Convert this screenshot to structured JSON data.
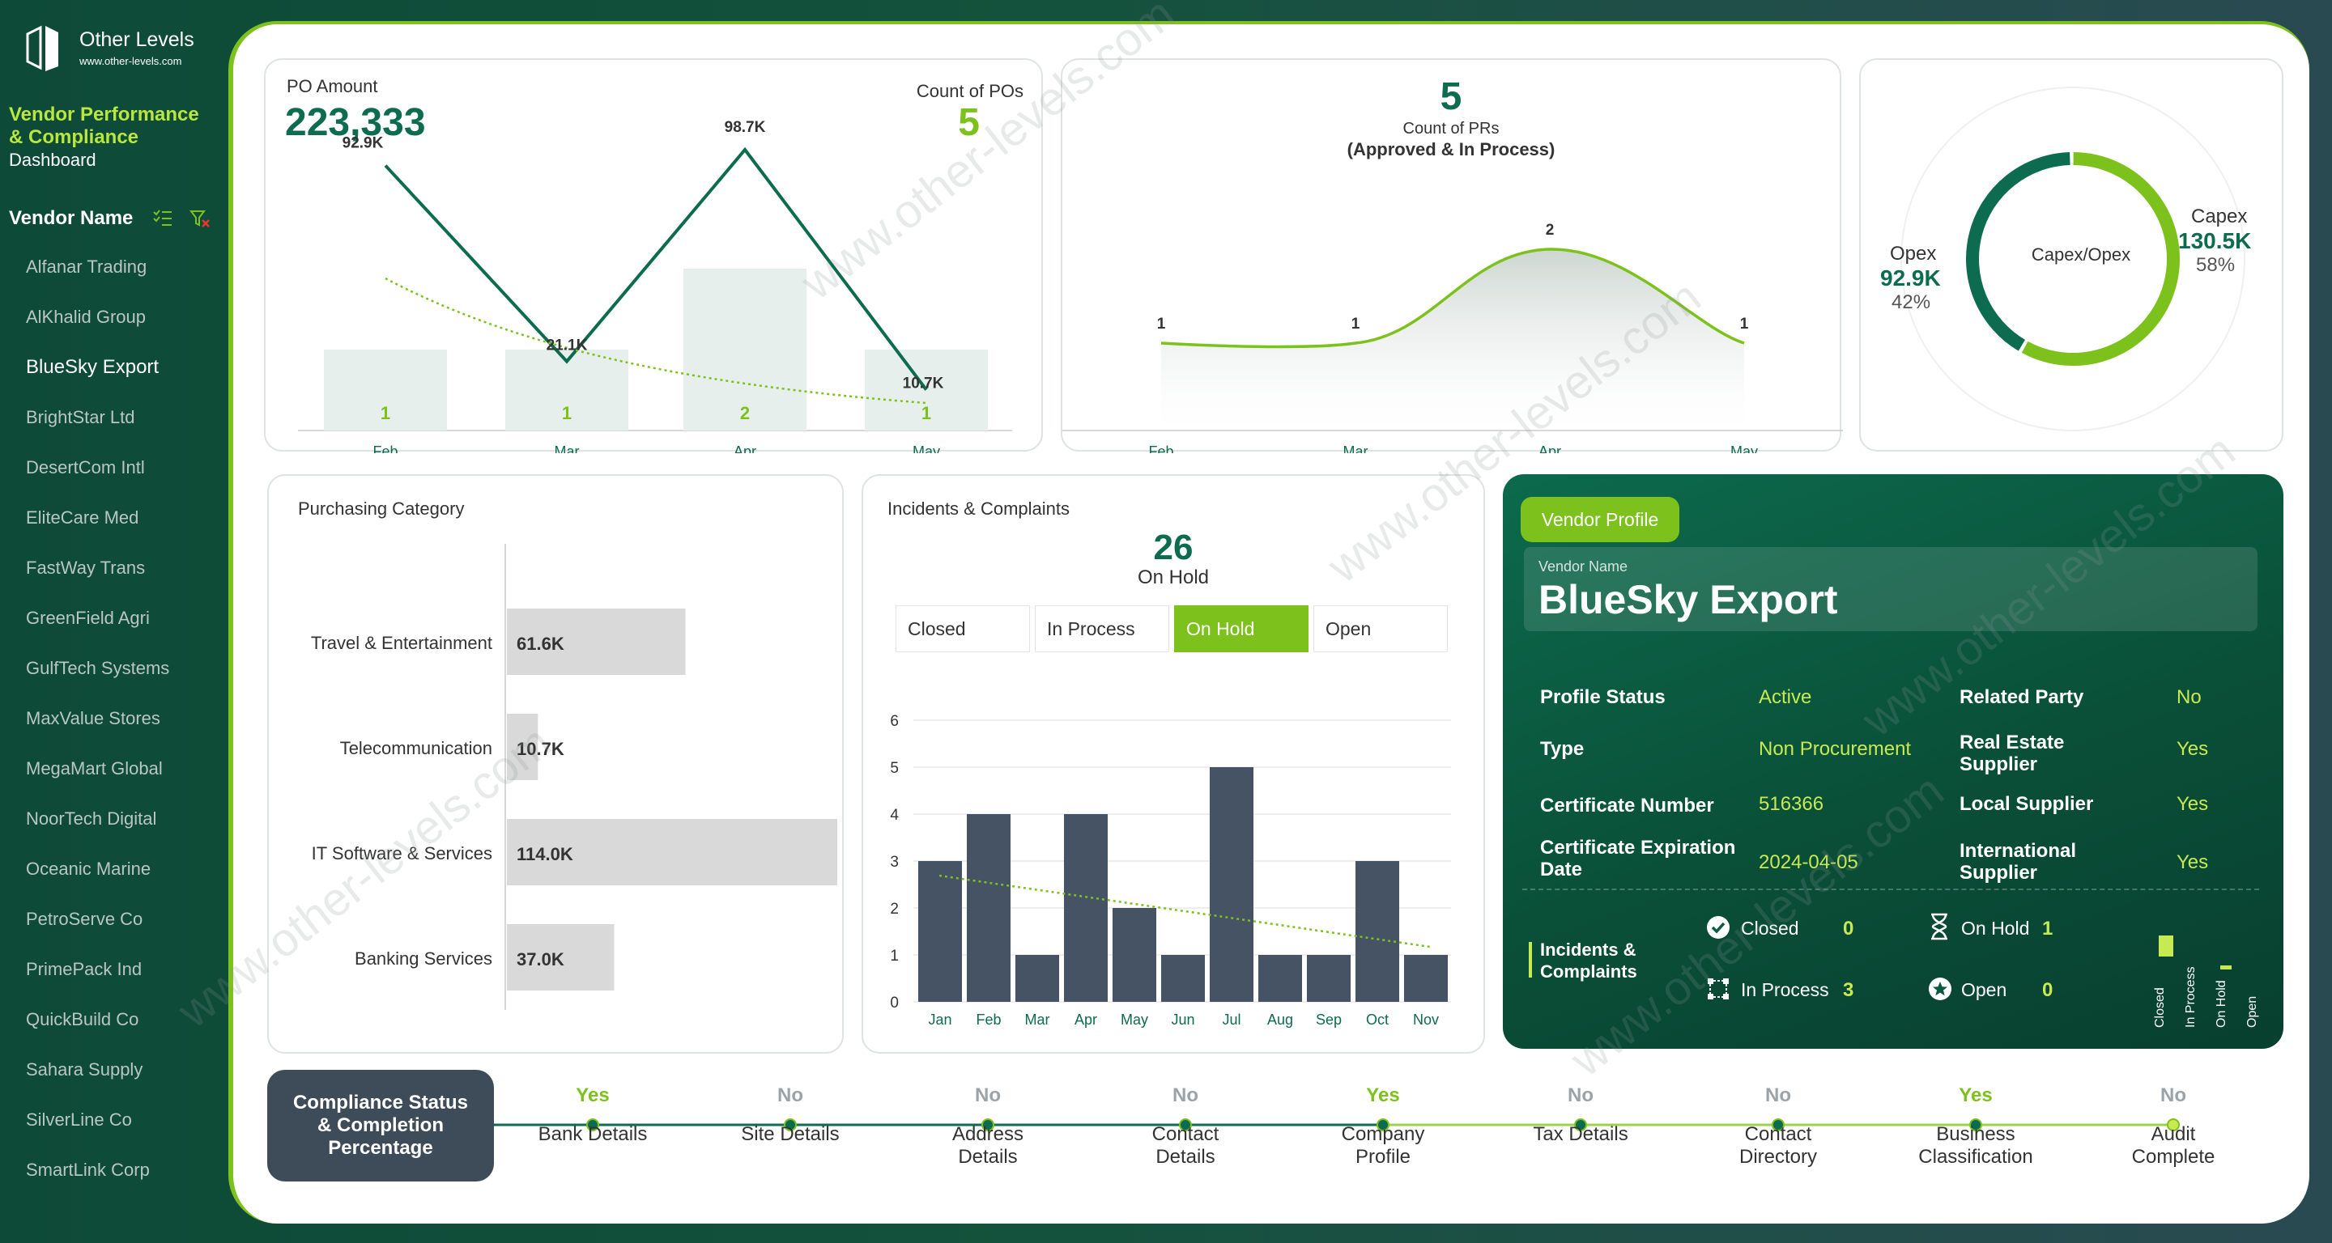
{
  "sidebar": {
    "brand_name": "Other Levels",
    "brand_url": "www.other-levels.com",
    "title_line1": "Vendor Performance",
    "title_line2": "& Compliance",
    "title_line3": "Dashboard",
    "slicer_label": "Vendor Name",
    "vendors": [
      "Alfanar Trading",
      "AlKhalid Group",
      "BlueSky Export",
      "BrightStar Ltd",
      "DesertCom Intl",
      "EliteCare Med",
      "FastWay Trans",
      "GreenField Agri",
      "GulfTech Systems",
      "MaxValue Stores",
      "MegaMart Global",
      "NoorTech Digital",
      "Oceanic Marine",
      "PetroServe Co",
      "PrimePack Ind",
      "QuickBuild Co",
      "Sahara Supply",
      "SilverLine Co",
      "SmartLink Corp"
    ],
    "selected_vendor": "BlueSky Export"
  },
  "po": {
    "label": "PO Amount",
    "value": "223,333",
    "count_label": "Count of POs",
    "count_value": "5"
  },
  "pr": {
    "value": "5",
    "label_line1": "Count of PRs",
    "label_line2": "(Approved & In Process)"
  },
  "capex": {
    "center_label": "Capex/Opex",
    "opex_label": "Opex",
    "opex_value": "92.9K",
    "opex_pct": "42%",
    "capex_label": "Capex",
    "capex_value": "130.5K",
    "capex_pct": "58%"
  },
  "purchasing": {
    "title": "Purchasing Category"
  },
  "incidents": {
    "title": "Incidents & Complaints",
    "count": "26",
    "count_label": "On Hold",
    "filters": [
      "Closed",
      "In Process",
      "On Hold",
      "Open"
    ],
    "active_filter": "On Hold"
  },
  "profile": {
    "badge": "Vendor Profile",
    "name_label": "Vendor Name",
    "name": "BlueSky Export",
    "fields_left": [
      {
        "label": "Profile Status",
        "value": "Active"
      },
      {
        "label": "Type",
        "value": "Non Procurement"
      },
      {
        "label": "Certificate Number",
        "value": "516366"
      },
      {
        "label": "Certificate Expiration Date",
        "value": "2024-04-05"
      }
    ],
    "fields_right": [
      {
        "label": "Related Party",
        "value": "No"
      },
      {
        "label": "Real Estate Supplier",
        "value": "Yes"
      },
      {
        "label": "Local Supplier",
        "value": "Yes"
      },
      {
        "label": "International Supplier",
        "value": "Yes"
      }
    ],
    "incidents_label": "Incidents & Complaints",
    "inc_closed_label": "Closed",
    "inc_closed": "0",
    "inc_onhold_label": "On Hold",
    "inc_onhold": "1",
    "inc_inprocess_label": "In Process",
    "inc_inprocess": "3",
    "inc_open_label": "Open",
    "inc_open": "0",
    "mini_labels": [
      "Closed",
      "In Process",
      "On Hold",
      "Open"
    ]
  },
  "compliance": {
    "title_line1": "Compliance Status",
    "title_line2": "& Completion",
    "title_line3": "Percentage",
    "steps": [
      {
        "status": "Yes",
        "label1": "Bank Details",
        "label2": ""
      },
      {
        "status": "No",
        "label1": "Site Details",
        "label2": ""
      },
      {
        "status": "No",
        "label1": "Address",
        "label2": "Details"
      },
      {
        "status": "No",
        "label1": "Contact",
        "label2": "Details"
      },
      {
        "status": "Yes",
        "label1": "Company",
        "label2": "Profile"
      },
      {
        "status": "No",
        "label1": "Tax Details",
        "label2": ""
      },
      {
        "status": "No",
        "label1": "Contact",
        "label2": "Directory"
      },
      {
        "status": "Yes",
        "label1": "Business",
        "label2": "Classification"
      },
      {
        "status": "No",
        "label1": "Audit",
        "label2": "Complete"
      }
    ]
  },
  "colors": {
    "green": "#7dc11d",
    "dark_green": "#0d6b4f",
    "slate": "#435062",
    "yes": "#7dc11d",
    "no": "#9aa3a8"
  },
  "watermark": "www.other-levels.com",
  "chart_data": [
    {
      "type": "bar",
      "title": "PO Amount",
      "categories": [
        "Feb",
        "Mar",
        "Apr",
        "May"
      ],
      "series": [
        {
          "name": "Count of POs",
          "values": [
            1,
            1,
            2,
            1
          ]
        },
        {
          "name": "PO Amount",
          "values": [
            92.9,
            21.1,
            98.7,
            10.7
          ],
          "labels": [
            "92.9K",
            "21.1K",
            "98.7K",
            "10.7K"
          ]
        }
      ]
    },
    {
      "type": "area",
      "title": "Count of PRs",
      "categories": [
        "Feb",
        "Mar",
        "Apr",
        "May"
      ],
      "values": [
        1,
        1,
        2,
        1
      ]
    },
    {
      "type": "pie",
      "title": "Capex/Opex",
      "categories": [
        "Opex",
        "Capex"
      ],
      "values": [
        92.9,
        130.5
      ],
      "percents": [
        42,
        58
      ]
    },
    {
      "type": "bar",
      "title": "Purchasing Category",
      "categories": [
        "Travel & Entertainment",
        "Telecommunication",
        "IT Software & Services",
        "Banking Services"
      ],
      "values": [
        61.6,
        10.7,
        114.0,
        37.0
      ],
      "labels": [
        "61.6K",
        "10.7K",
        "114.0K",
        "37.0K"
      ]
    },
    {
      "type": "bar",
      "title": "Incidents & Complaints",
      "categories": [
        "Jan",
        "Feb",
        "Mar",
        "Apr",
        "May",
        "Jun",
        "Jul",
        "Aug",
        "Sep",
        "Oct",
        "Nov"
      ],
      "values": [
        3,
        4,
        1,
        4,
        2,
        1,
        5,
        1,
        1,
        3,
        1
      ],
      "ylim": [
        0,
        6
      ],
      "yticks": [
        "0",
        "1",
        "2",
        "3",
        "4",
        "5",
        "6"
      ]
    }
  ]
}
